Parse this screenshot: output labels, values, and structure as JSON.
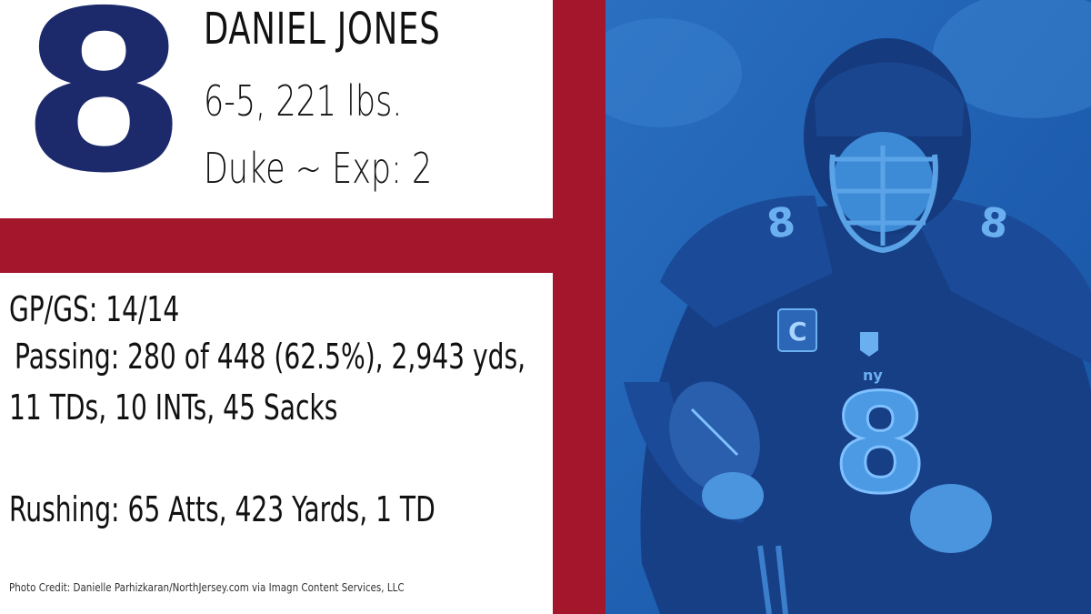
{
  "player": {
    "number": "8",
    "name": "DANIEL JONES",
    "measurements": "6-5,  221 lbs.",
    "school_exp": "Duke ~ Exp: 2"
  },
  "stats": {
    "games": "GP/GS: 14/14",
    "passing_line1": "Passing: 280 of 448 (62.5%), 2,943 yds,",
    "passing_line2": "11 TDs, 10 INTs, 45 Sacks",
    "rushing": "Rushing: 65 Atts, 423 Yards, 1 TD"
  },
  "credit": "Photo Credit: Danielle Parhizkaran/NorthJersey.com via Imagn Content Services, LLC",
  "photo": {
    "jersey_number": "8",
    "captain_patch": "C",
    "logo_text": "ny"
  },
  "colors": {
    "navy": "#1c2a6b",
    "red": "#a3162c",
    "photo_blue": "#1a5cb0"
  }
}
